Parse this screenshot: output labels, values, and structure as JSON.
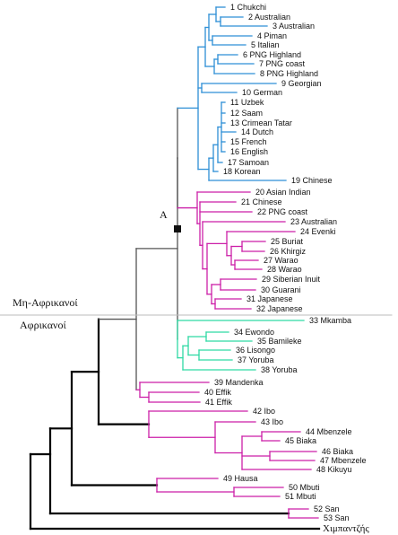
{
  "colors": {
    "blue": "#2e8fd6",
    "magenta": "#cc1fa8",
    "green": "#2fd9a4",
    "gray": "#555555",
    "black": "#000000",
    "divider": "#bbbbbb"
  },
  "labels": {
    "non_african": "Μη-Αφρικανοί",
    "african": "Αφρικανοί",
    "node_a": "A",
    "chimp": "Χιμπαντζής"
  },
  "leaves": [
    {
      "num": 1,
      "name": "Chukchi"
    },
    {
      "num": 2,
      "name": "Australian"
    },
    {
      "num": 3,
      "name": "Australian"
    },
    {
      "num": 4,
      "name": "Piman"
    },
    {
      "num": 5,
      "name": "Italian"
    },
    {
      "num": 6,
      "name": "PNG Highland"
    },
    {
      "num": 7,
      "name": "PNG coast"
    },
    {
      "num": 8,
      "name": "PNG Highland"
    },
    {
      "num": 9,
      "name": "Georgian"
    },
    {
      "num": 10,
      "name": "German"
    },
    {
      "num": 11,
      "name": "Uzbek"
    },
    {
      "num": 12,
      "name": "Saam"
    },
    {
      "num": 13,
      "name": "Crimean Tatar"
    },
    {
      "num": 14,
      "name": "Dutch"
    },
    {
      "num": 15,
      "name": "French"
    },
    {
      "num": 16,
      "name": "English"
    },
    {
      "num": 17,
      "name": "Samoan"
    },
    {
      "num": 18,
      "name": "Korean"
    },
    {
      "num": 19,
      "name": "Chinese"
    },
    {
      "num": 20,
      "name": "Asian Indian"
    },
    {
      "num": 21,
      "name": "Chinese"
    },
    {
      "num": 22,
      "name": "PNG coast"
    },
    {
      "num": 23,
      "name": "Australian"
    },
    {
      "num": 24,
      "name": "Evenki"
    },
    {
      "num": 25,
      "name": "Buriat"
    },
    {
      "num": 26,
      "name": "Khirgiz"
    },
    {
      "num": 27,
      "name": "Warao"
    },
    {
      "num": 28,
      "name": "Warao"
    },
    {
      "num": 29,
      "name": "Siberian Inuit"
    },
    {
      "num": 30,
      "name": "Guarani"
    },
    {
      "num": 31,
      "name": "Japanese"
    },
    {
      "num": 32,
      "name": "Japanese"
    },
    {
      "num": 33,
      "name": "Mkamba"
    },
    {
      "num": 34,
      "name": "Ewondo"
    },
    {
      "num": 35,
      "name": "Bamileke"
    },
    {
      "num": 36,
      "name": "Lisongo"
    },
    {
      "num": 37,
      "name": "Yoruba"
    },
    {
      "num": 38,
      "name": "Yoruba"
    },
    {
      "num": 39,
      "name": "Mandenka"
    },
    {
      "num": 40,
      "name": "Effik"
    },
    {
      "num": 41,
      "name": "Effik"
    },
    {
      "num": 42,
      "name": "Ibo"
    },
    {
      "num": 43,
      "name": "Ibo"
    },
    {
      "num": 44,
      "name": "Mbenzele"
    },
    {
      "num": 45,
      "name": "Biaka"
    },
    {
      "num": 46,
      "name": "Biaka"
    },
    {
      "num": 47,
      "name": "Mbenzele"
    },
    {
      "num": 48,
      "name": "Kikuyu"
    },
    {
      "num": 49,
      "name": "Hausa"
    },
    {
      "num": 50,
      "name": "Mbuti"
    },
    {
      "num": 51,
      "name": "Mbuti"
    },
    {
      "num": 52,
      "name": "San"
    },
    {
      "num": 53,
      "name": "San"
    }
  ]
}
